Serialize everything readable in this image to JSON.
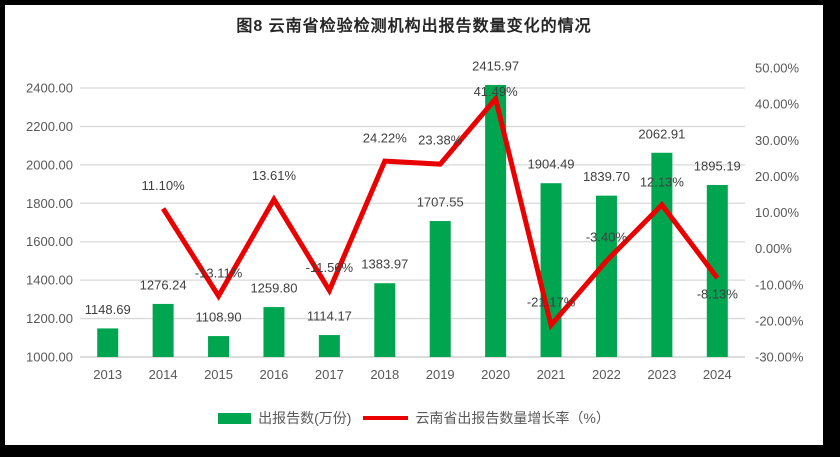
{
  "chart_data": {
    "type": "combo_bar_line",
    "title": "图8 云南省检验检测机构出报告数量变化的情况",
    "categories": [
      "2013",
      "2014",
      "2015",
      "2016",
      "2017",
      "2018",
      "2019",
      "2020",
      "2021",
      "2022",
      "2023",
      "2024"
    ],
    "series": [
      {
        "name": "出报告数(万份)",
        "type": "bar",
        "color": "#00A550",
        "values": [
          1148.69,
          1276.24,
          1108.9,
          1259.8,
          1114.17,
          1383.97,
          1707.55,
          2415.97,
          1904.49,
          1839.7,
          2062.91,
          1895.19
        ],
        "labels": [
          "1148.69",
          "1276.24",
          "1108.90",
          "1259.80",
          "1114.17",
          "1383.97",
          "1707.55",
          "2415.97",
          "1904.49",
          "1839.70",
          "2062.91",
          "1895.19"
        ]
      },
      {
        "name": "云南省出报告数量增长率（%）",
        "type": "line",
        "color": "#EB0000",
        "values": [
          null,
          11.1,
          -13.11,
          13.61,
          -11.56,
          24.22,
          23.38,
          41.49,
          -21.17,
          -3.4,
          12.13,
          -8.13
        ],
        "labels": [
          "",
          "11.10%",
          "-13.11%",
          "13.61%",
          "-11.56%",
          "24.22%",
          "23.38%",
          "41.49%",
          "-21.17%",
          "-3.40%",
          "12.13%",
          "-8.13%"
        ],
        "label_dy": [
          0,
          -23,
          -23,
          -24,
          -23,
          -23,
          -24,
          -7,
          -23,
          -24,
          -23,
          16
        ]
      }
    ],
    "axes": {
      "left": {
        "min": 1000,
        "max": 2400,
        "ticks": [
          "2400.00",
          "2200.00",
          "2000.00",
          "1800.00",
          "1600.00",
          "1400.00",
          "1200.00",
          "1000.00"
        ]
      },
      "right": {
        "min": -30,
        "max": 50,
        "ticks": [
          "50.00%",
          "40.00%",
          "30.00%",
          "20.00%",
          "10.00%",
          "0.00%",
          "-10.00%",
          "-20.00%",
          "-30.00%"
        ]
      }
    },
    "grid": true,
    "legend_position": "bottom",
    "colors": {
      "grid": "#D9D9D9",
      "axis_line": "#C6C6C6",
      "axis_text": "#595959",
      "data_label": "#404040",
      "title": "#262626",
      "frame": "#000000",
      "background": "#FFFFFF"
    }
  }
}
